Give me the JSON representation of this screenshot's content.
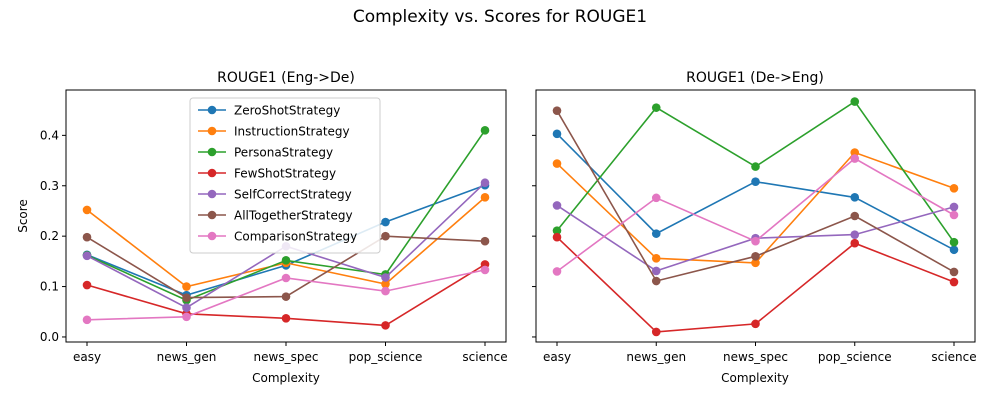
{
  "figure": {
    "suptitle": "Complexity vs. Scores for ROUGE1"
  },
  "chart_data": [
    {
      "type": "line",
      "title": "ROUGE1 (Eng->De)",
      "xlabel": "Complexity",
      "ylabel": "Score",
      "categories": [
        "easy",
        "news_gen",
        "news_spec",
        "pop_science",
        "science"
      ],
      "ylim": [
        -0.01,
        0.49
      ],
      "yticks": [
        0.0,
        0.1,
        0.2,
        0.3,
        0.4
      ],
      "ytick_labels": [
        "0.0",
        "0.1",
        "0.2",
        "0.3",
        "0.4"
      ],
      "grid": false,
      "legend": "upper-center",
      "series": [
        {
          "name": "ZeroShotStrategy",
          "color": "#1f77b4",
          "values": [
            0.163,
            0.083,
            0.142,
            0.228,
            0.301
          ]
        },
        {
          "name": "InstructionStrategy",
          "color": "#ff7f0e",
          "values": [
            0.252,
            0.1,
            0.147,
            0.105,
            0.277
          ]
        },
        {
          "name": "PersonaStrategy",
          "color": "#2ca02c",
          "values": [
            0.162,
            0.073,
            0.152,
            0.124,
            0.41
          ]
        },
        {
          "name": "FewShotStrategy",
          "color": "#d62728",
          "values": [
            0.103,
            0.046,
            0.037,
            0.023,
            0.144
          ]
        },
        {
          "name": "SelfCorrectStrategy",
          "color": "#9467bd",
          "values": [
            0.161,
            0.058,
            0.18,
            0.118,
            0.306
          ]
        },
        {
          "name": "AllTogetherStrategy",
          "color": "#8c564b",
          "values": [
            0.198,
            0.078,
            0.08,
            0.2,
            0.19
          ]
        },
        {
          "name": "ComparisonStrategy",
          "color": "#e377c2",
          "values": [
            0.034,
            0.04,
            0.117,
            0.091,
            0.133
          ]
        }
      ]
    },
    {
      "type": "line",
      "title": "ROUGE1 (De->Eng)",
      "xlabel": "Complexity",
      "ylabel": "",
      "categories": [
        "easy",
        "news_gen",
        "news_spec",
        "pop_science",
        "science"
      ],
      "ylim": [
        -0.01,
        0.49
      ],
      "grid": false,
      "series": [
        {
          "name": "ZeroShotStrategy",
          "color": "#1f77b4",
          "values": [
            0.403,
            0.205,
            0.308,
            0.277,
            0.173
          ]
        },
        {
          "name": "InstructionStrategy",
          "color": "#ff7f0e",
          "values": [
            0.344,
            0.156,
            0.147,
            0.366,
            0.295
          ]
        },
        {
          "name": "PersonaStrategy",
          "color": "#2ca02c",
          "values": [
            0.211,
            0.455,
            0.338,
            0.467,
            0.188
          ]
        },
        {
          "name": "FewShotStrategy",
          "color": "#d62728",
          "values": [
            0.198,
            0.01,
            0.026,
            0.186,
            0.109
          ]
        },
        {
          "name": "SelfCorrectStrategy",
          "color": "#9467bd",
          "values": [
            0.261,
            0.131,
            0.196,
            0.203,
            0.258
          ]
        },
        {
          "name": "AllTogetherStrategy",
          "color": "#8c564b",
          "values": [
            0.449,
            0.111,
            0.16,
            0.24,
            0.129
          ]
        },
        {
          "name": "ComparisonStrategy",
          "color": "#e377c2",
          "values": [
            0.13,
            0.276,
            0.19,
            0.354,
            0.242
          ]
        }
      ]
    }
  ]
}
